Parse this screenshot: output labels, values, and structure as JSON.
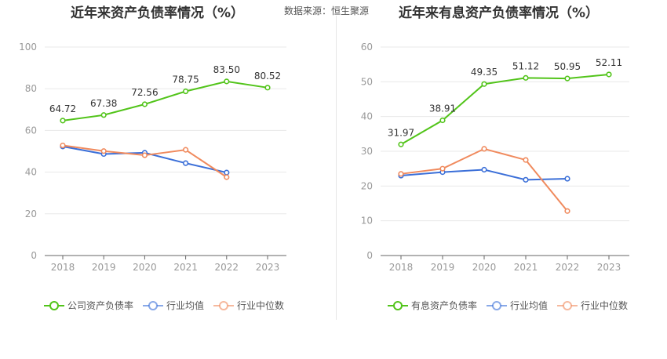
{
  "header": {
    "left_title": "近年来资产负债率情况（%）",
    "right_title": "近年来有息资产负债率情况（%）",
    "source": "数据来源：恒生聚源"
  },
  "chart_data": [
    {
      "type": "line",
      "title": "近年来资产负债率情况（%）",
      "categories": [
        "2018",
        "2019",
        "2020",
        "2021",
        "2022",
        "2023"
      ],
      "ylim": [
        0,
        100
      ],
      "yticks": [
        0,
        20,
        40,
        60,
        80,
        100
      ],
      "grid": true,
      "legend": "bottom",
      "series": [
        {
          "name": "公司资产负债率",
          "color": "#52c41a",
          "values": [
            64.72,
            67.38,
            72.56,
            78.75,
            83.5,
            80.52
          ],
          "labels": [
            "64.72",
            "67.38",
            "72.56",
            "78.75",
            "83.50",
            "80.52"
          ]
        },
        {
          "name": "行业均值",
          "color": "#3b6fd8",
          "values": [
            52.3,
            48.7,
            49.3,
            44.3,
            39.8,
            null
          ]
        },
        {
          "name": "行业中位数",
          "color": "#f08a5d",
          "values": [
            52.8,
            50.1,
            48.1,
            50.7,
            37.6,
            null
          ]
        }
      ]
    },
    {
      "type": "line",
      "title": "近年来有息资产负债率情况（%）",
      "categories": [
        "2018",
        "2019",
        "2020",
        "2021",
        "2022",
        "2023"
      ],
      "ylim": [
        0,
        60
      ],
      "yticks": [
        0,
        10,
        20,
        30,
        40,
        50,
        60
      ],
      "grid": true,
      "legend": "bottom",
      "series": [
        {
          "name": "有息资产负债率",
          "color": "#52c41a",
          "values": [
            31.97,
            38.91,
            49.35,
            51.12,
            50.95,
            52.11
          ],
          "labels": [
            "31.97",
            "38.91",
            "49.35",
            "51.12",
            "50.95",
            "52.11"
          ]
        },
        {
          "name": "行业均值",
          "color": "#3b6fd8",
          "values": [
            23.0,
            24.0,
            24.7,
            21.8,
            22.1,
            null
          ]
        },
        {
          "name": "行业中位数",
          "color": "#f08a5d",
          "values": [
            23.5,
            25.0,
            30.7,
            27.5,
            12.8,
            null
          ]
        }
      ]
    }
  ]
}
